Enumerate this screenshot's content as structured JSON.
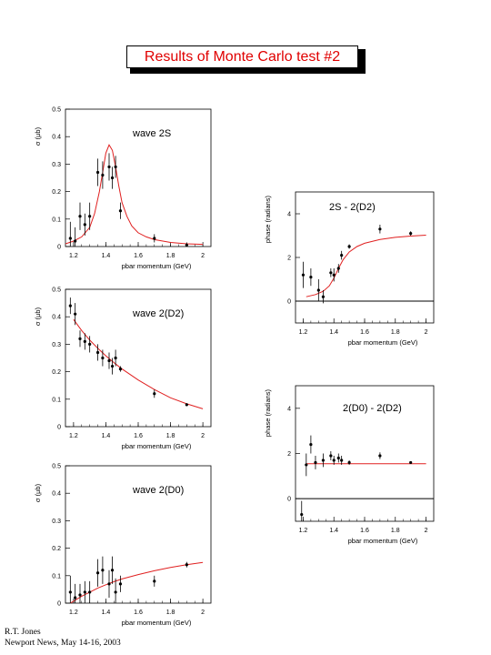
{
  "title": "Results of Monte Carlo test #2",
  "footer": {
    "line1": "R.T. Jones",
    "line2": "Newport News, May 14-16, 2003"
  },
  "chart_data": [
    {
      "type": "scatter",
      "annotation": "wave 2S",
      "xlabel": "pbar momentum (GeV)",
      "ylabel": "σ (μb)",
      "xlim": [
        1.15,
        2.05
      ],
      "ylim": [
        0,
        0.5
      ],
      "xticks": [
        1.2,
        1.4,
        1.6,
        1.8,
        2
      ],
      "yticks": [
        0,
        0.1,
        0.2,
        0.3,
        0.4,
        0.5
      ],
      "xtick_labels": [
        "1.2",
        "1.4",
        "1.6",
        "1.8",
        "2"
      ],
      "ytick_labels": [
        "0",
        "0.1",
        "0.2",
        "0.3",
        "0.4",
        "0.5"
      ],
      "series": [
        {
          "x": [
            1.18,
            1.21,
            1.24,
            1.27,
            1.3,
            1.35,
            1.38,
            1.42,
            1.44,
            1.46,
            1.49,
            1.7,
            1.9
          ],
          "y": [
            0.03,
            0.02,
            0.11,
            0.08,
            0.11,
            0.27,
            0.26,
            0.29,
            0.25,
            0.29,
            0.13,
            0.03,
            0.005
          ],
          "err": [
            0.06,
            0.05,
            0.05,
            0.04,
            0.05,
            0.05,
            0.05,
            0.05,
            0.04,
            0.04,
            0.03,
            0.015,
            0.01
          ]
        }
      ],
      "fit": {
        "x": [
          1.15,
          1.2,
          1.25,
          1.3,
          1.33,
          1.36,
          1.38,
          1.4,
          1.42,
          1.44,
          1.46,
          1.48,
          1.5,
          1.53,
          1.56,
          1.6,
          1.65,
          1.7,
          1.8,
          1.9,
          2.0
        ],
        "y": [
          0.01,
          0.02,
          0.035,
          0.07,
          0.12,
          0.2,
          0.27,
          0.34,
          0.37,
          0.35,
          0.29,
          0.22,
          0.16,
          0.11,
          0.075,
          0.05,
          0.035,
          0.025,
          0.015,
          0.01,
          0.008
        ]
      }
    },
    {
      "type": "scatter",
      "annotation": "wave 2(D2)",
      "xlabel": "pbar momentum (GeV)",
      "ylabel": "σ (μb)",
      "xlim": [
        1.15,
        2.05
      ],
      "ylim": [
        0,
        0.5
      ],
      "xticks": [
        1.2,
        1.4,
        1.6,
        1.8,
        2
      ],
      "yticks": [
        0,
        0.1,
        0.2,
        0.3,
        0.4,
        0.5
      ],
      "xtick_labels": [
        "1.2",
        "1.4",
        "1.6",
        "1.8",
        "2"
      ],
      "ytick_labels": [
        "0",
        "0.1",
        "0.2",
        "0.3",
        "0.4",
        "0.5"
      ],
      "series": [
        {
          "x": [
            1.18,
            1.21,
            1.24,
            1.27,
            1.3,
            1.35,
            1.38,
            1.42,
            1.44,
            1.46,
            1.49,
            1.7,
            1.9
          ],
          "y": [
            0.44,
            0.41,
            0.32,
            0.31,
            0.3,
            0.27,
            0.25,
            0.24,
            0.22,
            0.25,
            0.21,
            0.12,
            0.08
          ],
          "err": [
            0.03,
            0.04,
            0.03,
            0.03,
            0.03,
            0.03,
            0.03,
            0.03,
            0.03,
            0.03,
            0.01,
            0.015,
            0.005
          ]
        }
      ],
      "fit": {
        "x": [
          1.2,
          1.25,
          1.3,
          1.35,
          1.4,
          1.45,
          1.5,
          1.6,
          1.7,
          1.8,
          1.9,
          2.0
        ],
        "y": [
          0.39,
          0.35,
          0.315,
          0.285,
          0.258,
          0.233,
          0.21,
          0.17,
          0.135,
          0.105,
          0.083,
          0.065
        ]
      }
    },
    {
      "type": "scatter",
      "annotation": "wave 2(D0)",
      "xlabel": "pbar momentum (GeV)",
      "ylabel": "σ (μb)",
      "xlim": [
        1.15,
        2.05
      ],
      "ylim": [
        0,
        0.5
      ],
      "xticks": [
        1.2,
        1.4,
        1.6,
        1.8,
        2
      ],
      "yticks": [
        0,
        0.1,
        0.2,
        0.3,
        0.4,
        0.5
      ],
      "xtick_labels": [
        "1.2",
        "1.4",
        "1.6",
        "1.8",
        "2"
      ],
      "ytick_labels": [
        "0",
        "0.1",
        "0.2",
        "0.3",
        "0.4",
        "0.5"
      ],
      "series": [
        {
          "x": [
            1.18,
            1.21,
            1.24,
            1.27,
            1.3,
            1.35,
            1.38,
            1.42,
            1.44,
            1.46,
            1.49,
            1.7,
            1.9
          ],
          "y": [
            0.04,
            0.02,
            0.03,
            0.04,
            0.04,
            0.11,
            0.12,
            0.07,
            0.12,
            0.04,
            0.07,
            0.08,
            0.14
          ],
          "err": [
            0.06,
            0.05,
            0.04,
            0.04,
            0.04,
            0.05,
            0.05,
            0.05,
            0.05,
            0.05,
            0.03,
            0.02,
            0.01
          ]
        }
      ],
      "fit": {
        "x": [
          1.18,
          1.25,
          1.3,
          1.35,
          1.4,
          1.45,
          1.5,
          1.6,
          1.7,
          1.8,
          1.9,
          2.0
        ],
        "y": [
          0.0,
          0.025,
          0.04,
          0.055,
          0.067,
          0.078,
          0.088,
          0.104,
          0.118,
          0.13,
          0.14,
          0.148
        ]
      }
    },
    {
      "type": "scatter",
      "annotation": "2S - 2(D2)",
      "xlabel": "pbar momentum (GeV)",
      "ylabel": "phase (radians)",
      "xlim": [
        1.15,
        2.05
      ],
      "ylim": [
        -1.0,
        5.0
      ],
      "xticks": [
        1.2,
        1.4,
        1.6,
        1.8,
        2
      ],
      "yticks": [
        0,
        2,
        4
      ],
      "xtick_labels": [
        "1.2",
        "1.4",
        "1.6",
        "1.8",
        "2"
      ],
      "ytick_labels": [
        "0",
        "2",
        "4"
      ],
      "series": [
        {
          "x": [
            1.2,
            1.25,
            1.3,
            1.33,
            1.38,
            1.4,
            1.43,
            1.45,
            1.5,
            1.7,
            1.9
          ],
          "y": [
            1.2,
            1.1,
            0.5,
            0.2,
            1.3,
            1.2,
            1.5,
            2.1,
            2.5,
            3.3,
            3.1
          ],
          "err": [
            0.6,
            0.4,
            0.5,
            0.3,
            0.2,
            0.3,
            0.2,
            0.2,
            0.1,
            0.2,
            0.1
          ]
        }
      ],
      "fit": {
        "x": [
          1.22,
          1.28,
          1.33,
          1.37,
          1.4,
          1.43,
          1.46,
          1.5,
          1.55,
          1.6,
          1.7,
          1.8,
          1.9,
          2.0
        ],
        "y": [
          0.2,
          0.3,
          0.45,
          0.7,
          1.05,
          1.5,
          1.9,
          2.25,
          2.5,
          2.65,
          2.82,
          2.92,
          2.98,
          3.02
        ]
      },
      "zero_line": 0
    },
    {
      "type": "scatter",
      "annotation": "2(D0) - 2(D2)",
      "xlabel": "pbar momentum (GeV)",
      "ylabel": "phase (radians)",
      "xlim": [
        1.15,
        2.05
      ],
      "ylim": [
        -1.0,
        5.0
      ],
      "xticks": [
        1.2,
        1.4,
        1.6,
        1.8,
        2
      ],
      "yticks": [
        0,
        2,
        4
      ],
      "xtick_labels": [
        "1.2",
        "1.4",
        "1.6",
        "1.8",
        "2"
      ],
      "ytick_labels": [
        "0",
        "2",
        "4"
      ],
      "series": [
        {
          "x": [
            1.19,
            1.22,
            1.25,
            1.28,
            1.33,
            1.38,
            1.4,
            1.43,
            1.45,
            1.5,
            1.7,
            1.9
          ],
          "y": [
            -0.7,
            1.5,
            2.4,
            1.6,
            1.7,
            1.9,
            1.7,
            1.8,
            1.7,
            1.6,
            1.9,
            1.6
          ],
          "err": [
            0.6,
            0.5,
            0.4,
            0.3,
            0.3,
            0.2,
            0.2,
            0.2,
            0.2,
            0.1,
            0.15,
            0.05
          ]
        }
      ],
      "fit": {
        "x": [
          1.22,
          2.0
        ],
        "y": [
          1.55,
          1.55
        ]
      },
      "zero_line": 0
    }
  ]
}
